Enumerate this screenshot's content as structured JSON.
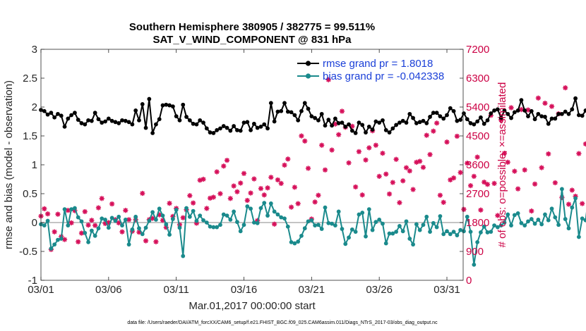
{
  "chart_data": {
    "type": "line",
    "title": "Southern Hemisphere 380905 / 382775 = 99.511%",
    "subtitle": "SAT_V_WIND_COMPONENT @ 831 hPa",
    "xlabel": "Mar.01,2017 00:00:00 start",
    "ylabel_left": "rmse and bias (model - observation)",
    "ylabel_right": "# of obs: o=possible; ×=assimilated",
    "xlim": [
      1,
      32.2
    ],
    "ylim": [
      -1,
      3
    ],
    "ylim_right": [
      0,
      7200
    ],
    "x_ticks": [
      {
        "value": 1,
        "label": "03/01"
      },
      {
        "value": 6,
        "label": "03/06"
      },
      {
        "value": 11,
        "label": "03/11"
      },
      {
        "value": 16,
        "label": "03/16"
      },
      {
        "value": 21,
        "label": "03/21"
      },
      {
        "value": 26,
        "label": "03/26"
      },
      {
        "value": 31,
        "label": "03/31"
      }
    ],
    "y_ticks_left": [
      {
        "value": -1,
        "label": "-1"
      },
      {
        "value": -0.5,
        "label": "-0.5"
      },
      {
        "value": 0,
        "label": "0"
      },
      {
        "value": 0.5,
        "label": "0.5"
      },
      {
        "value": 1,
        "label": "1"
      },
      {
        "value": 1.5,
        "label": "1.5"
      },
      {
        "value": 2,
        "label": "2"
      },
      {
        "value": 2.5,
        "label": "2.5"
      },
      {
        "value": 3,
        "label": "3"
      }
    ],
    "y_ticks_right": [
      {
        "value": 0,
        "label": "0"
      },
      {
        "value": 900,
        "label": "900"
      },
      {
        "value": 1800,
        "label": "1800"
      },
      {
        "value": 2700,
        "label": "2700"
      },
      {
        "value": 3600,
        "label": "3600"
      },
      {
        "value": 4500,
        "label": "4500"
      },
      {
        "value": 5400,
        "label": "5400"
      },
      {
        "value": 6300,
        "label": "6300"
      },
      {
        "value": 7200,
        "label": "7200"
      }
    ],
    "x_start": 1,
    "x_step": 0.25,
    "series": [
      {
        "name": "rmse grand pr = 1.8018",
        "color": "#000000",
        "axis": "left",
        "values": [
          1.95,
          1.93,
          1.87,
          1.9,
          1.82,
          1.88,
          1.85,
          1.66,
          1.8,
          1.86,
          1.9,
          1.78,
          1.72,
          1.7,
          1.77,
          1.76,
          1.9,
          1.79,
          1.73,
          1.75,
          1.8,
          1.76,
          1.74,
          1.72,
          1.77,
          1.76,
          1.74,
          1.7,
          1.94,
          1.77,
          2.05,
          1.64,
          2.14,
          1.55,
          1.7,
          1.79,
          2.03,
          2.04,
          2.03,
          2.01,
          1.84,
          1.77,
          2.04,
          1.83,
          1.77,
          1.71,
          1.7,
          1.77,
          1.73,
          1.63,
          1.56,
          1.55,
          1.6,
          1.63,
          1.67,
          1.64,
          1.59,
          1.67,
          1.6,
          1.59,
          1.73,
          1.74,
          1.6,
          1.71,
          1.64,
          1.66,
          1.7,
          1.63,
          2.07,
          1.75,
          1.92,
          1.93,
          2.07,
          1.92,
          1.91,
          1.86,
          1.77,
          1.93,
          2.07,
          1.97,
          1.84,
          1.81,
          1.77,
          1.88,
          1.68,
          1.78,
          1.68,
          1.8,
          1.72,
          1.73,
          1.66,
          1.7,
          1.59,
          1.55,
          1.73,
          1.69,
          1.56,
          1.66,
          1.61,
          1.75,
          1.73,
          1.77,
          1.6,
          1.56,
          1.63,
          1.69,
          1.73,
          1.76,
          1.73,
          1.88,
          1.81,
          1.72,
          1.74,
          1.76,
          1.72,
          1.83,
          1.9,
          1.9,
          1.84,
          1.8,
          1.86,
          1.98,
          1.93,
          1.76,
          1.78,
          1.89,
          1.79,
          1.72,
          1.7,
          1.75,
          1.82,
          1.71,
          1.77,
          1.89,
          1.94,
          1.96,
          1.81,
          1.94,
          1.88,
          1.81,
          1.91,
          1.94,
          2.12,
          1.94,
          1.84,
          1.93,
          1.79,
          1.88,
          1.84,
          1.83,
          1.71,
          1.8,
          1.8,
          1.88,
          1.88,
          1.92,
          1.88,
          1.96,
          2.15,
          1.86,
          1.85,
          1.94,
          1.95,
          2.05,
          2.42,
          2.07,
          2.07,
          2.03,
          1.94,
          1.81
        ]
      },
      {
        "name": "bias grand pr = -0.042338",
        "color": "#1a8a8c",
        "axis": "left",
        "values": [
          -0.03,
          -0.05,
          0.03,
          -0.45,
          -0.38,
          -0.3,
          -0.28,
          0.23,
          -0.05,
          0.23,
          0.25,
          0.09,
          0.02,
          -0.18,
          -0.34,
          -0.14,
          -0.23,
          -0.1,
          0.07,
          0.05,
          -0.09,
          0.08,
          0.03,
          0.1,
          -0.05,
          0.05,
          -0.38,
          -0.12,
          0.1,
          -0.1,
          -0.2,
          -0.09,
          0.03,
          0.18,
          0.05,
          0.24,
          0.12,
          -0.03,
          -0.21,
          0.06,
          0.22,
          -0.09,
          -0.58,
          0.25,
          0.1,
          0.2,
          0.03,
          0.12,
          0.04,
          0.0,
          -0.07,
          -0.08,
          -0.08,
          -0.04,
          0.14,
          0.12,
          0.05,
          0.19,
          0.01,
          -0.15,
          -0.04,
          0.28,
          0.24,
          0.0,
          -0.01,
          0.25,
          0.34,
          0.12,
          0.33,
          0.19,
          0.14,
          0.09,
          0.07,
          -0.07,
          -0.34,
          -0.36,
          -0.33,
          -0.23,
          -0.1,
          0.02,
          0.04,
          -0.05,
          -0.04,
          -0.11,
          0.26,
          -0.01,
          -0.02,
          -0.05,
          0.19,
          -0.11,
          -0.37,
          -0.26,
          -0.12,
          -0.16,
          0.14,
          0.17,
          -0.24,
          0.23,
          -0.13,
          0.01,
          0.05,
          -0.02,
          -0.36,
          -0.19,
          -0.19,
          -0.16,
          -0.06,
          -0.15,
          0.02,
          -0.28,
          -0.38,
          -0.03,
          -0.13,
          -0.04,
          0.1,
          -0.16,
          -0.01,
          -0.08,
          0.11,
          -0.2,
          -0.15,
          -0.2,
          -0.16,
          -0.22,
          -0.13,
          -0.15,
          0.1,
          -0.16,
          -0.73,
          -0.34,
          -0.17,
          -0.07,
          -0.17,
          -0.16,
          -0.05,
          -0.08,
          -0.05,
          0.0,
          0.14,
          -0.05,
          0.13,
          0.16,
          -0.01,
          -0.05,
          0.02,
          0.06,
          -0.02,
          0.05,
          -0.03,
          0.14,
          0.04,
          0.24,
          0.09,
          -0.04,
          0.58,
          0.06,
          -0.1,
          0.26,
          0.42,
          -0.25,
          0.07,
          0.04,
          0.5,
          0.33,
          0.56,
          -0.31,
          0.12,
          0.07,
          0.43,
          0.16,
          0.68,
          0.16,
          -0.17,
          -0.25,
          -0.14,
          -0.1,
          -0.09
        ]
      },
      {
        "name": "observations count",
        "color": "#d6105a",
        "axis": "right",
        "marker": "asterisk",
        "values": [
          2000,
          2230,
          2070,
          960,
          1510,
          2060,
          1360,
          1270,
          2180,
          1790,
          2170,
          1200,
          1470,
          2140,
          1720,
          1870,
          1710,
          2260,
          2550,
          1770,
          1800,
          2380,
          1890,
          1790,
          1510,
          2180,
          1890,
          1530,
          1890,
          1500,
          2710,
          1230,
          1890,
          1930,
          1200,
          2040,
          1870,
          1650,
          2400,
          1990,
          2240,
          1730,
          1950,
          2200,
          2640,
          2410,
          1780,
          3120,
          3150,
          2240,
          2560,
          2590,
          3380,
          2700,
          3560,
          3740,
          2550,
          2940,
          2760,
          3030,
          3330,
          2490,
          2720,
          3160,
          1860,
          2860,
          2660,
          2880,
          3210,
          1750,
          3130,
          3020,
          3590,
          3780,
          2280,
          2900,
          2390,
          4500,
          4340,
          3490,
          1910,
          2440,
          2650,
          4210,
          3440,
          6250,
          4060,
          4870,
          4540,
          5270,
          4770,
          3660,
          4800,
          2910,
          4010,
          2660,
          3750,
          4130,
          4660,
          4210,
          3240,
          3960,
          3310,
          2690,
          3050,
          3770,
          2420,
          3100,
          3510,
          3410,
          2830,
          3680,
          3710,
          3520,
          4520,
          3920,
          4650,
          4900,
          2650,
          2430,
          4310,
          3130,
          3190,
          4490,
          3360,
          2210,
          3650,
          2950,
          3240,
          3840,
          2190,
          3060,
          2990,
          5140,
          3020,
          2020,
          5000,
          3960,
          3680,
          5380,
          3400,
          2850,
          5320,
          3440,
          5310,
          2160,
          3000,
          5680,
          3510,
          5520,
          3940,
          5420,
          3040,
          5190,
          2580,
          6000,
          2370,
          2810,
          2620,
          3950,
          2390,
          4250,
          1970,
          3870,
          2560,
          5910,
          2070,
          5210,
          5330,
          2200,
          3400,
          5620,
          6100,
          2880,
          3020,
          1990
        ]
      }
    ],
    "legend": [
      {
        "label": "rmse grand pr = 1.8018",
        "color": "#000000"
      },
      {
        "label": "bias grand pr = -0.042338",
        "color": "#1a8a8c"
      }
    ],
    "reference_line_value": 0,
    "footnote": "data file: /Users/raeder/DAI/ATM_forcXX/CAM6_setup/f.e21.FHIST_BGC.f09_025.CAM6assim.011/Diags_NTrS_2017-03/obs_diag_output.nc"
  }
}
